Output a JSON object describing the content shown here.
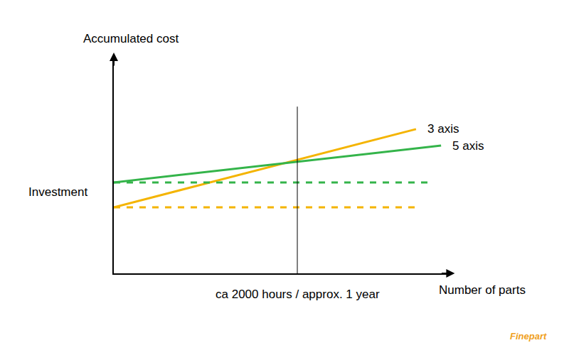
{
  "chart_data": {
    "type": "line",
    "y_label": "Accumulated cost",
    "x_label": "Number of parts",
    "investment_label": "Investment",
    "watermark": "Finepart",
    "xlim": [
      0,
      100
    ],
    "ylim": [
      0,
      100
    ],
    "xticks": [],
    "yticks": [],
    "tick_labels": false,
    "grid": false,
    "series": [
      {
        "name": "3 axis",
        "color": "#f4b400",
        "line_style": "solid",
        "x": [
          0,
          90.4
        ],
        "values": [
          30.5,
          66.6
        ]
      },
      {
        "name": "5 axis",
        "color": "#34b44a",
        "line_style": "solid",
        "x": [
          0,
          97.9
        ],
        "values": [
          42.0,
          59.0
        ]
      },
      {
        "color": "#34b44a",
        "line_style": "dashed",
        "x": [
          0,
          94.7
        ],
        "values": [
          42.0,
          42.0
        ]
      },
      {
        "color": "#f4b400",
        "line_style": "dashed",
        "x": [
          0,
          91.9
        ],
        "values": [
          30.5,
          30.5
        ]
      }
    ],
    "reference_line": {
      "x": 54.9,
      "y": [
        0,
        77
      ],
      "label": "ca 2000 hours / approx. 1 year"
    }
  }
}
